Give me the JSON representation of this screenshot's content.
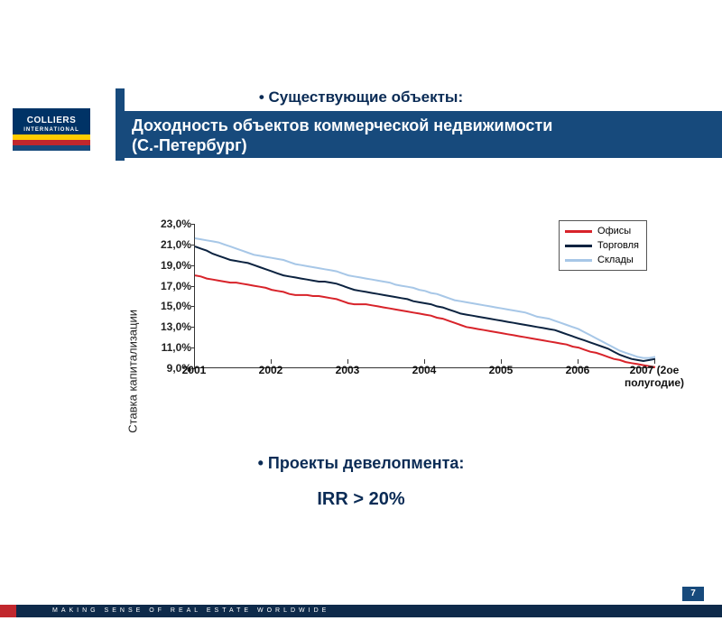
{
  "brand": {
    "name": "COLLIERS",
    "sub": "INTERNATIONAL",
    "stripe_colors": [
      "#ffcc00",
      "#c1272d",
      "#174a7c"
    ]
  },
  "header": {
    "title_line1": "Доходность объектов коммерческой недвижимости",
    "title_line2": "(С.-Петербург)",
    "bg": "#174a7c",
    "fg": "#ffffff"
  },
  "subtitle_bullet": "• Существующие объекты:",
  "chart": {
    "type": "line",
    "ylabel": "Ставка капитализации",
    "ylim": [
      9.0,
      23.0
    ],
    "ytick_step": 2.0,
    "yticks": [
      "9,0%",
      "11,0%",
      "13,0%",
      "15,0%",
      "17,0%",
      "19,0%",
      "21,0%",
      "23,0%"
    ],
    "xlabels": [
      "2001",
      "2002",
      "2003",
      "2004",
      "2005",
      "2006",
      "2007 (2ое полугодие)"
    ],
    "x_count": 79,
    "background_color": "#ffffff",
    "axis_color": "#333333",
    "label_fontsize": 12,
    "title_fontsize": 13,
    "line_width": 2,
    "legend_position": "top-right",
    "series": [
      {
        "name": "Офисы",
        "color": "#d8232a",
        "values": [
          18.0,
          17.9,
          17.7,
          17.6,
          17.5,
          17.4,
          17.3,
          17.3,
          17.2,
          17.1,
          17.0,
          16.9,
          16.8,
          16.6,
          16.5,
          16.4,
          16.2,
          16.1,
          16.1,
          16.1,
          16.0,
          16.0,
          15.9,
          15.8,
          15.7,
          15.5,
          15.3,
          15.2,
          15.2,
          15.2,
          15.1,
          15.0,
          14.9,
          14.8,
          14.7,
          14.6,
          14.5,
          14.4,
          14.3,
          14.2,
          14.1,
          13.9,
          13.8,
          13.6,
          13.4,
          13.2,
          13.0,
          12.9,
          12.8,
          12.7,
          12.6,
          12.5,
          12.4,
          12.3,
          12.2,
          12.1,
          12.0,
          11.9,
          11.8,
          11.7,
          11.6,
          11.5,
          11.4,
          11.3,
          11.1,
          11.0,
          10.8,
          10.6,
          10.5,
          10.3,
          10.1,
          9.9,
          9.8,
          9.6,
          9.5,
          9.4,
          9.3,
          9.2,
          9.1
        ]
      },
      {
        "name": "Торговля",
        "color": "#0c2340",
        "values": [
          20.8,
          20.6,
          20.4,
          20.1,
          19.9,
          19.7,
          19.5,
          19.4,
          19.3,
          19.2,
          19.0,
          18.8,
          18.6,
          18.4,
          18.2,
          18.0,
          17.9,
          17.8,
          17.7,
          17.6,
          17.5,
          17.4,
          17.4,
          17.3,
          17.2,
          17.0,
          16.8,
          16.6,
          16.5,
          16.4,
          16.3,
          16.2,
          16.1,
          16.0,
          15.9,
          15.8,
          15.7,
          15.5,
          15.4,
          15.3,
          15.2,
          15.0,
          14.9,
          14.7,
          14.5,
          14.3,
          14.2,
          14.1,
          14.0,
          13.9,
          13.8,
          13.7,
          13.6,
          13.5,
          13.4,
          13.3,
          13.2,
          13.1,
          13.0,
          12.9,
          12.8,
          12.7,
          12.5,
          12.3,
          12.1,
          11.9,
          11.7,
          11.5,
          11.3,
          11.1,
          10.9,
          10.6,
          10.3,
          10.1,
          9.9,
          9.8,
          9.7,
          9.8,
          9.9
        ]
      },
      {
        "name": "Склады",
        "color": "#a7c7e7",
        "values": [
          21.6,
          21.5,
          21.4,
          21.3,
          21.2,
          21.0,
          20.8,
          20.6,
          20.4,
          20.2,
          20.0,
          19.9,
          19.8,
          19.7,
          19.6,
          19.5,
          19.3,
          19.1,
          19.0,
          18.9,
          18.8,
          18.7,
          18.6,
          18.5,
          18.4,
          18.2,
          18.0,
          17.9,
          17.8,
          17.7,
          17.6,
          17.5,
          17.4,
          17.3,
          17.1,
          17.0,
          16.9,
          16.8,
          16.6,
          16.5,
          16.3,
          16.2,
          16.0,
          15.8,
          15.6,
          15.5,
          15.4,
          15.3,
          15.2,
          15.1,
          15.0,
          14.9,
          14.8,
          14.7,
          14.6,
          14.5,
          14.4,
          14.2,
          14.0,
          13.9,
          13.8,
          13.6,
          13.4,
          13.2,
          13.0,
          12.8,
          12.5,
          12.2,
          11.9,
          11.6,
          11.3,
          11.0,
          10.7,
          10.5,
          10.3,
          10.1,
          10.0,
          10.0,
          10.1
        ]
      }
    ]
  },
  "dev_section": {
    "heading": "• Проекты девелопмента:",
    "value": "IRR > 20%"
  },
  "footer": {
    "tagline": "MAKING SENSE OF REAL ESTATE WORLDWIDE",
    "page": "7",
    "red": "#c1272d",
    "blue": "#0e2a4a"
  }
}
